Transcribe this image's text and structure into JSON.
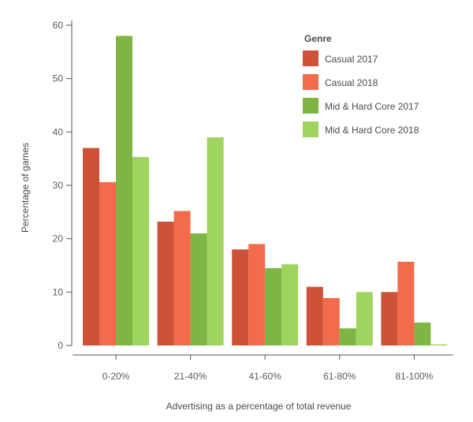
{
  "chart_data": {
    "type": "bar",
    "title": "",
    "xlabel": "Advertising as a percentage of total revenue",
    "ylabel": "Percentage of games",
    "categories": [
      "0-20%",
      "21-40%",
      "41-60%",
      "61-80%",
      "81-100%"
    ],
    "ylim": [
      0,
      60
    ],
    "yticks": [
      0,
      10,
      20,
      30,
      40,
      50,
      60
    ],
    "grid": false,
    "legend": {
      "title": "Genre",
      "placement": "top-right"
    },
    "series": [
      {
        "name": "Casual 2017",
        "color": "#cd5237",
        "values": [
          37,
          23.2,
          18,
          11,
          10
        ]
      },
      {
        "name": "Casual 2018",
        "color": "#f26b4a",
        "values": [
          30.6,
          25.2,
          19,
          8.9,
          15.7
        ]
      },
      {
        "name": "Mid & Hard Core 2017",
        "color": "#7fb544",
        "values": [
          58,
          21,
          14.5,
          3.2,
          4.3
        ]
      },
      {
        "name": "Mid & Hard Core 2018",
        "color": "#9fd45e",
        "values": [
          35.3,
          39,
          15.2,
          10,
          0.2
        ]
      }
    ]
  }
}
